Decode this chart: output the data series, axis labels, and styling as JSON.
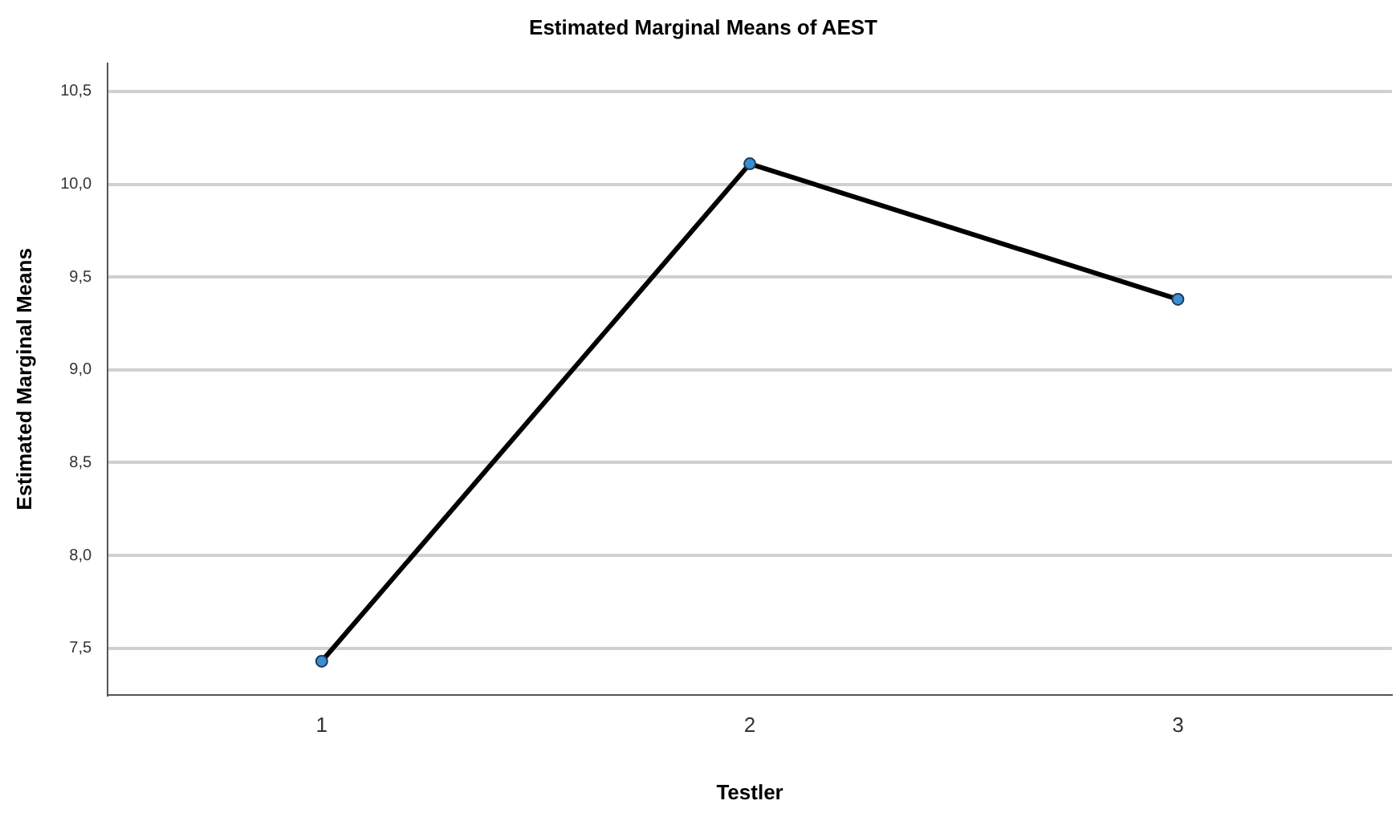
{
  "chart_data": {
    "type": "line",
    "title": "Estimated Marginal Means of AEST",
    "xlabel": "Testler",
    "ylabel": "Estimated Marginal Means",
    "categories": [
      "1",
      "2",
      "3"
    ],
    "series": [
      {
        "color": "#000000",
        "values": [
          7.43,
          10.11,
          9.38
        ]
      }
    ],
    "ylim": [
      7.25,
      10.65
    ],
    "yticks": [
      {
        "value": 7.5,
        "label": "7,5"
      },
      {
        "value": 8,
        "label": "8,0"
      },
      {
        "value": 8.5,
        "label": "8,5"
      },
      {
        "value": 9,
        "label": "9,0"
      },
      {
        "value": 9.5,
        "label": "9,5"
      },
      {
        "value": 10,
        "label": "10,0"
      },
      {
        "value": 10.5,
        "label": "10,5"
      }
    ],
    "grid": "y",
    "marker": "circle",
    "line_style": "solid",
    "legend": false
  }
}
